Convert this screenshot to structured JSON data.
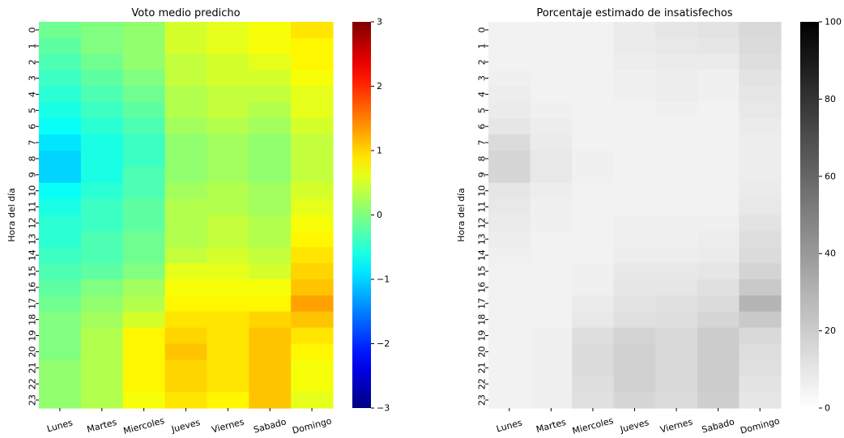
{
  "chart_data": [
    {
      "type": "heatmap",
      "title": "Voto medio predicho",
      "xlabel": "",
      "ylabel": "Hora del día",
      "x_categories": [
        "Lunes",
        "Martes",
        "Miercoles",
        "Jueves",
        "Viernes",
        "Sabado",
        "Domingo"
      ],
      "y_categories": [
        "0",
        "1",
        "2",
        "3",
        "4",
        "5",
        "6",
        "7",
        "8",
        "9",
        "10",
        "11",
        "12",
        "13",
        "14",
        "15",
        "16",
        "17",
        "18",
        "19",
        "20",
        "21",
        "22",
        "23"
      ],
      "colormap": "jet",
      "vmin": -3,
      "vmax": 3,
      "colorbar_ticks": [
        3,
        2,
        1,
        0,
        -1,
        -2,
        -3
      ],
      "colorbar_tick_labels": [
        "3",
        "2",
        "1",
        "0",
        "−1",
        "−2",
        "−3"
      ],
      "values": [
        [
          -0.1,
          0.0,
          0.1,
          0.5,
          0.6,
          0.7,
          0.9
        ],
        [
          -0.2,
          0.0,
          0.1,
          0.5,
          0.6,
          0.7,
          0.8
        ],
        [
          -0.3,
          -0.1,
          0.1,
          0.4,
          0.5,
          0.6,
          0.8
        ],
        [
          -0.4,
          -0.2,
          0.0,
          0.4,
          0.5,
          0.5,
          0.7
        ],
        [
          -0.5,
          -0.3,
          -0.1,
          0.3,
          0.4,
          0.4,
          0.6
        ],
        [
          -0.6,
          -0.4,
          -0.2,
          0.3,
          0.4,
          0.3,
          0.6
        ],
        [
          -0.7,
          -0.5,
          -0.3,
          0.2,
          0.3,
          0.2,
          0.5
        ],
        [
          -0.9,
          -0.6,
          -0.4,
          0.1,
          0.2,
          0.1,
          0.4
        ],
        [
          -1.0,
          -0.6,
          -0.4,
          0.1,
          0.2,
          0.1,
          0.4
        ],
        [
          -1.0,
          -0.6,
          -0.3,
          0.1,
          0.2,
          0.1,
          0.4
        ],
        [
          -0.7,
          -0.5,
          -0.3,
          0.2,
          0.3,
          0.2,
          0.5
        ],
        [
          -0.6,
          -0.4,
          -0.2,
          0.3,
          0.3,
          0.2,
          0.6
        ],
        [
          -0.5,
          -0.4,
          -0.2,
          0.3,
          0.4,
          0.3,
          0.7
        ],
        [
          -0.5,
          -0.3,
          -0.1,
          0.3,
          0.4,
          0.3,
          0.8
        ],
        [
          -0.4,
          -0.3,
          -0.1,
          0.4,
          0.5,
          0.4,
          0.9
        ],
        [
          -0.3,
          -0.2,
          0.0,
          0.6,
          0.6,
          0.5,
          1.0
        ],
        [
          -0.2,
          0.0,
          0.2,
          0.7,
          0.7,
          0.7,
          1.1
        ],
        [
          -0.1,
          0.1,
          0.3,
          0.8,
          0.8,
          0.8,
          1.3
        ],
        [
          0.0,
          0.2,
          0.5,
          0.9,
          0.9,
          1.0,
          1.1
        ],
        [
          0.0,
          0.3,
          0.8,
          1.0,
          0.9,
          1.1,
          0.9
        ],
        [
          0.0,
          0.3,
          0.8,
          1.1,
          0.9,
          1.1,
          0.8
        ],
        [
          0.1,
          0.3,
          0.8,
          1.0,
          0.9,
          1.1,
          0.7
        ],
        [
          0.1,
          0.3,
          0.8,
          1.0,
          0.9,
          1.1,
          0.7
        ],
        [
          0.1,
          0.3,
          0.7,
          0.9,
          0.8,
          1.1,
          0.6
        ]
      ]
    },
    {
      "type": "heatmap",
      "title": "Porcentaje estimado de insatisfechos",
      "xlabel": "",
      "ylabel": "Hora del día",
      "x_categories": [
        "Lunes",
        "Martes",
        "Miercoles",
        "Jueves",
        "Viernes",
        "Sabado",
        "Domingo"
      ],
      "y_categories": [
        "0",
        "1",
        "2",
        "3",
        "4",
        "5",
        "6",
        "7",
        "8",
        "9",
        "10",
        "11",
        "12",
        "13",
        "14",
        "15",
        "16",
        "17",
        "18",
        "19",
        "20",
        "21",
        "22",
        "23"
      ],
      "colormap": "gray_r",
      "vmin": 0,
      "vmax": 100,
      "colorbar_ticks": [
        100,
        80,
        60,
        40,
        20,
        0
      ],
      "colorbar_tick_labels": [
        "100",
        "80",
        "60",
        "40",
        "20",
        "0"
      ],
      "values": [
        [
          5,
          5,
          5,
          8,
          10,
          11,
          15
        ],
        [
          5,
          5,
          5,
          8,
          9,
          10,
          14
        ],
        [
          5,
          5,
          5,
          7,
          8,
          8,
          13
        ],
        [
          6,
          5,
          5,
          6,
          7,
          6,
          11
        ],
        [
          7,
          5,
          5,
          6,
          7,
          6,
          10
        ],
        [
          8,
          6,
          5,
          5,
          6,
          5,
          9
        ],
        [
          10,
          7,
          5,
          5,
          5,
          5,
          8
        ],
        [
          14,
          8,
          5,
          5,
          5,
          5,
          7
        ],
        [
          16,
          9,
          6,
          5,
          5,
          5,
          7
        ],
        [
          16,
          9,
          6,
          5,
          5,
          5,
          7
        ],
        [
          10,
          7,
          5,
          5,
          5,
          5,
          8
        ],
        [
          9,
          6,
          5,
          5,
          5,
          5,
          9
        ],
        [
          8,
          6,
          5,
          6,
          6,
          6,
          11
        ],
        [
          7,
          5,
          5,
          6,
          6,
          7,
          13
        ],
        [
          6,
          5,
          5,
          7,
          7,
          8,
          14
        ],
        [
          5,
          5,
          6,
          9,
          9,
          10,
          17
        ],
        [
          5,
          5,
          6,
          10,
          10,
          12,
          21
        ],
        [
          5,
          5,
          8,
          11,
          12,
          14,
          29
        ],
        [
          5,
          5,
          9,
          12,
          13,
          16,
          21
        ],
        [
          5,
          6,
          13,
          17,
          15,
          20,
          15
        ],
        [
          5,
          6,
          14,
          18,
          15,
          20,
          13
        ],
        [
          5,
          6,
          14,
          18,
          15,
          20,
          12
        ],
        [
          5,
          6,
          13,
          18,
          15,
          20,
          11
        ],
        [
          5,
          6,
          12,
          16,
          14,
          19,
          10
        ]
      ]
    }
  ]
}
